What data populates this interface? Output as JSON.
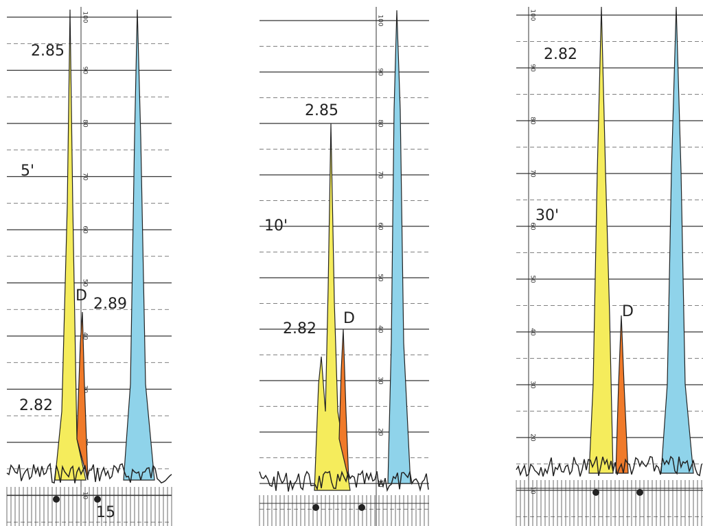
{
  "panels": [
    {
      "time": "5'",
      "axis_ticks": [
        10,
        20,
        30,
        40,
        50,
        60,
        70,
        80,
        90,
        100
      ],
      "labels": [
        "2.85",
        "D",
        "2.89",
        "2.82",
        "15"
      ]
    },
    {
      "time": "10'",
      "axis_ticks": [
        10,
        20,
        30,
        40,
        50,
        60,
        70,
        80,
        90,
        100
      ],
      "labels": [
        "2.85",
        "2.82",
        "D"
      ]
    },
    {
      "time": "30'",
      "axis_ticks": [
        10,
        20,
        30,
        40,
        50,
        60,
        70,
        80,
        90,
        100
      ],
      "labels": [
        "2.82",
        "D"
      ]
    }
  ]
}
